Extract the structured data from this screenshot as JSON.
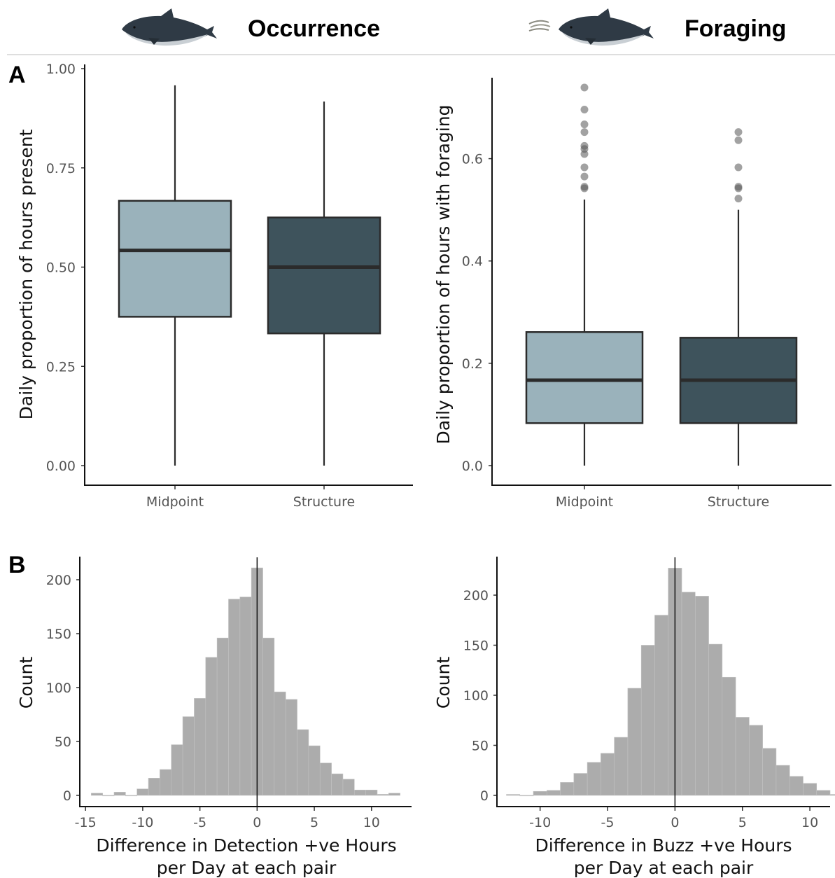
{
  "header": {
    "left_title": "Occurrence",
    "right_title": "Foraging"
  },
  "panel_labels": {
    "a": "A",
    "b": "B"
  },
  "colors": {
    "midpoint": "#9ab2bb",
    "structure": "#3e535c",
    "box_border": "#2b2b2b",
    "histogram": "#acacac",
    "outlier": "#555555"
  },
  "chart_data": [
    {
      "id": "occ-box",
      "type": "box",
      "categories": [
        "Midpoint",
        "Structure"
      ],
      "ylabel": "Daily proportion of hours present",
      "ylim": [
        0,
        1
      ],
      "yticks": [
        "0.00",
        "0.25",
        "0.50",
        "0.75",
        "1.00"
      ],
      "boxes": [
        {
          "name": "Midpoint",
          "min": 0.0,
          "q1": 0.375,
          "median": 0.542,
          "q3": 0.667,
          "max": 0.958,
          "outliers": []
        },
        {
          "name": "Structure",
          "min": 0.0,
          "q1": 0.333,
          "median": 0.5,
          "q3": 0.625,
          "max": 0.917,
          "outliers": []
        }
      ]
    },
    {
      "id": "for-box",
      "type": "box",
      "categories": [
        "Midpoint",
        "Structure"
      ],
      "ylabel": "Daily proportion of hours with foraging",
      "ylim": [
        0,
        0.75
      ],
      "yticks": [
        "0.0",
        "0.2",
        "0.4",
        "0.6"
      ],
      "boxes": [
        {
          "name": "Midpoint",
          "min": 0.0,
          "q1": 0.083,
          "median": 0.167,
          "q3": 0.261,
          "max": 0.52,
          "outliers": [
            0.542,
            0.545,
            0.565,
            0.583,
            0.609,
            0.619,
            0.625,
            0.652,
            0.667,
            0.696,
            0.739
          ]
        },
        {
          "name": "Structure",
          "min": 0.0,
          "q1": 0.083,
          "median": 0.167,
          "q3": 0.25,
          "max": 0.5,
          "outliers": [
            0.522,
            0.542,
            0.545,
            0.583,
            0.636,
            0.652
          ]
        }
      ]
    },
    {
      "id": "occ-hist",
      "type": "histogram",
      "xlabel": "Difference in Detection +ve Hours",
      "xlabel2": "per Day at each pair",
      "ylabel": "Count",
      "xlim": [
        -15.5,
        13.5
      ],
      "ylim": [
        0,
        222
      ],
      "xticks": [
        "-15",
        "-10",
        "-5",
        "0",
        "5",
        "10"
      ],
      "yticks": [
        "0",
        "50",
        "100",
        "150",
        "200"
      ],
      "vline": 0,
      "bin_start": -14.5,
      "bin_width": 1,
      "counts": [
        2,
        0,
        3,
        0,
        6,
        16,
        24,
        47,
        73,
        90,
        128,
        146,
        182,
        184,
        211,
        146,
        96,
        89,
        61,
        46,
        30,
        20,
        15,
        5,
        5,
        1,
        2
      ]
    },
    {
      "id": "for-hist",
      "type": "histogram",
      "xlabel": "Difference in Buzz +ve Hours",
      "xlabel2": "per Day at each pair",
      "ylabel": "Count",
      "xlim": [
        -13.2,
        11.5
      ],
      "ylim": [
        0,
        240
      ],
      "xticks": [
        "-10",
        "-5",
        "0",
        "5",
        "10"
      ],
      "yticks": [
        "0",
        "50",
        "100",
        "150",
        "200"
      ],
      "vline": 0,
      "bin_start": -12.5,
      "bin_width": 1,
      "counts": [
        1,
        0,
        4,
        5,
        13,
        22,
        33,
        42,
        58,
        107,
        150,
        180,
        227,
        203,
        199,
        151,
        118,
        78,
        70,
        47,
        30,
        19,
        12,
        5,
        1
      ]
    }
  ]
}
